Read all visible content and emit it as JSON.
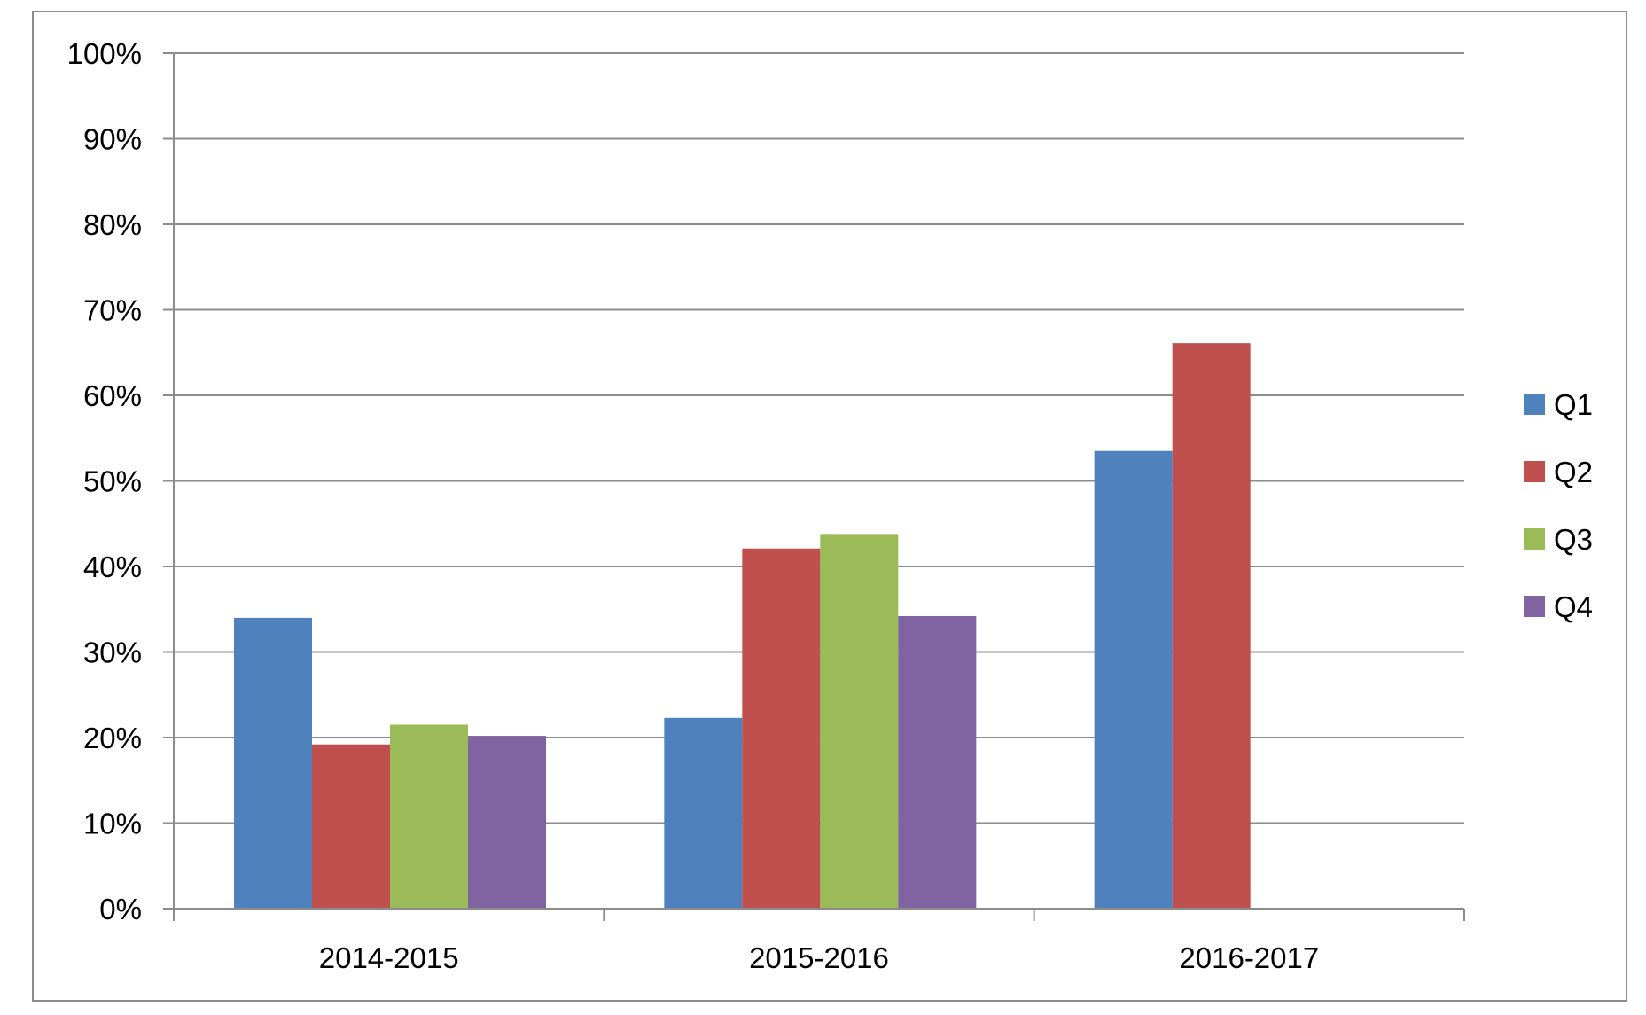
{
  "chart_data": {
    "type": "bar",
    "categories": [
      "2014-2015",
      "2015-2016",
      "2016-2017"
    ],
    "series": [
      {
        "name": "Q1",
        "color": "#4F81BD",
        "values": [
          34,
          22.3,
          53.5
        ]
      },
      {
        "name": "Q2",
        "color": "#C0504D",
        "values": [
          19.2,
          42.1,
          66.1
        ]
      },
      {
        "name": "Q3",
        "color": "#9BBB59",
        "values": [
          21.5,
          43.8,
          null
        ]
      },
      {
        "name": "Q4",
        "color": "#8064A2",
        "values": [
          20.2,
          34.2,
          null
        ]
      }
    ],
    "y_ticks": [
      "0%",
      "10%",
      "20%",
      "30%",
      "40%",
      "50%",
      "60%",
      "70%",
      "80%",
      "90%",
      "100%"
    ],
    "ylim": [
      0,
      100
    ],
    "y_unit": "%",
    "grid": true,
    "legend_position": "right"
  }
}
